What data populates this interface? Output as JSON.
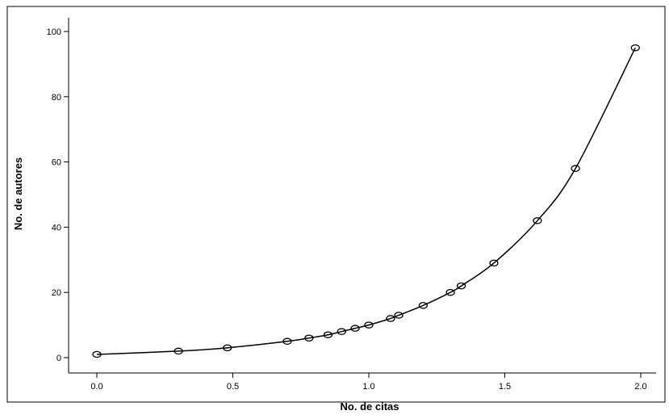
{
  "chart_data": {
    "type": "line",
    "title": "",
    "xlabel": "No. de citas",
    "ylabel": "No. de autores",
    "xlim": [
      -0.1,
      2.08
    ],
    "ylim": [
      -5,
      106
    ],
    "x_ticks": [
      "0.0",
      "0.5",
      "1.0",
      "1.5",
      "2.0"
    ],
    "y_ticks": [
      "0",
      "20",
      "40",
      "60",
      "80",
      "100"
    ],
    "grid": false,
    "legend": "none",
    "marker": "open-circle",
    "line_color": "#000000",
    "series": [
      {
        "x": [
          0.0,
          0.3,
          0.48,
          0.7,
          0.78,
          0.85,
          0.9,
          0.95,
          1.0,
          1.08,
          1.11,
          1.2,
          1.3,
          1.34,
          1.46,
          1.62,
          1.76,
          1.98
        ],
        "values": [
          1,
          2,
          3,
          5,
          6,
          7,
          8,
          9,
          10,
          12,
          13,
          16,
          20,
          22,
          29,
          42,
          58,
          95
        ]
      }
    ]
  }
}
